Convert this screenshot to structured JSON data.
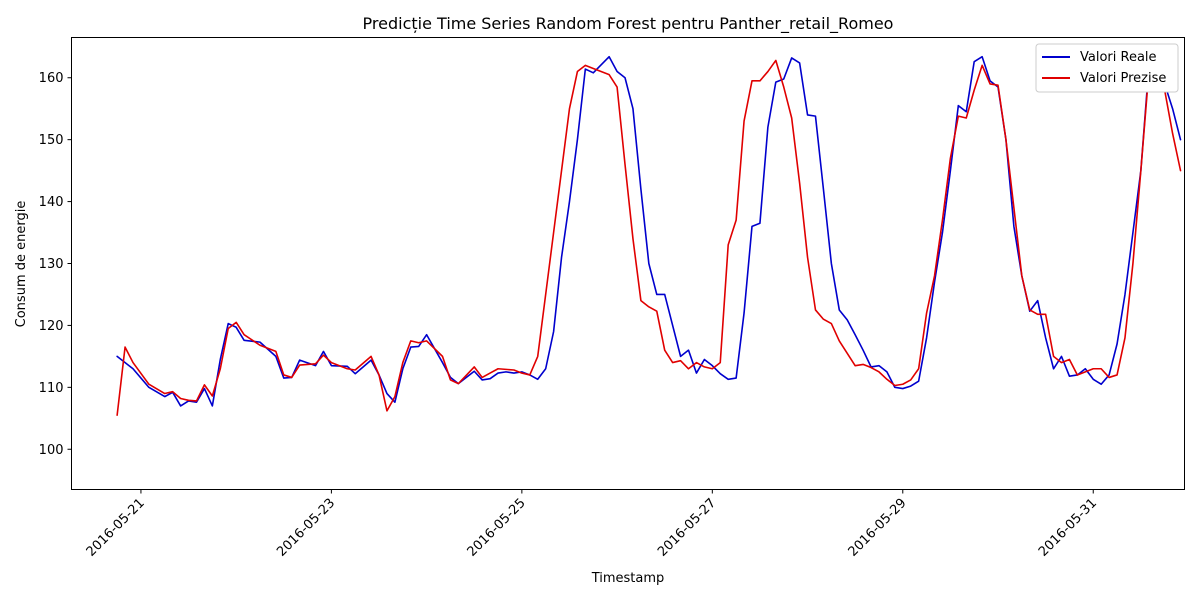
{
  "chart_data": {
    "type": "line",
    "title": "Predicție Time Series Random Forest pentru Panther_retail_Romeo",
    "xlabel": "Timestamp",
    "ylabel": "Consum de energie",
    "x_ticks": [
      "2016-05-21",
      "2016-05-23",
      "2016-05-25",
      "2016-05-27",
      "2016-05-29",
      "2016-05-31"
    ],
    "y_ticks": [
      100,
      110,
      120,
      130,
      140,
      150,
      160
    ],
    "ylim": [
      93.5,
      166.5
    ],
    "xlim": [
      "2016-05-20 06:30",
      "2016-05-31 23:00"
    ],
    "grid": false,
    "legend_position": "top-right",
    "series": [
      {
        "name": "Valori Reale",
        "color": "#0000cd",
        "points": [
          [
            "2016-05-20 18:00",
            115.0
          ],
          [
            "2016-05-20 22:00",
            113.0
          ],
          [
            "2016-05-21 02:00",
            110.0
          ],
          [
            "2016-05-21 06:00",
            108.5
          ],
          [
            "2016-05-21 08:00",
            109.2
          ],
          [
            "2016-05-21 10:00",
            107.0
          ],
          [
            "2016-05-21 12:00",
            107.8
          ],
          [
            "2016-05-21 14:00",
            107.6
          ],
          [
            "2016-05-21 16:00",
            109.8
          ],
          [
            "2016-05-21 18:00",
            107.0
          ],
          [
            "2016-05-21 20:00",
            114.5
          ],
          [
            "2016-05-21 22:00",
            120.3
          ],
          [
            "2016-05-22 00:00",
            119.7
          ],
          [
            "2016-05-22 02:00",
            117.6
          ],
          [
            "2016-05-22 06:00",
            117.3
          ],
          [
            "2016-05-22 10:00",
            115.0
          ],
          [
            "2016-05-22 12:00",
            111.5
          ],
          [
            "2016-05-22 14:00",
            111.6
          ],
          [
            "2016-05-22 16:00",
            114.4
          ],
          [
            "2016-05-22 20:00",
            113.5
          ],
          [
            "2016-05-22 22:00",
            115.8
          ],
          [
            "2016-05-23 00:00",
            113.5
          ],
          [
            "2016-05-23 04:00",
            113.4
          ],
          [
            "2016-05-23 06:00",
            112.2
          ],
          [
            "2016-05-23 10:00",
            114.4
          ],
          [
            "2016-05-23 12:00",
            112.0
          ],
          [
            "2016-05-23 14:00",
            109.0
          ],
          [
            "2016-05-23 16:00",
            107.6
          ],
          [
            "2016-05-23 18:00",
            113.0
          ],
          [
            "2016-05-23 20:00",
            116.5
          ],
          [
            "2016-05-23 22:00",
            116.6
          ],
          [
            "2016-05-24 00:00",
            118.5
          ],
          [
            "2016-05-24 04:00",
            114.0
          ],
          [
            "2016-05-24 06:00",
            111.6
          ],
          [
            "2016-05-24 08:00",
            110.6
          ],
          [
            "2016-05-24 12:00",
            112.6
          ],
          [
            "2016-05-24 14:00",
            111.2
          ],
          [
            "2016-05-24 16:00",
            111.4
          ],
          [
            "2016-05-24 18:00",
            112.3
          ],
          [
            "2016-05-24 20:00",
            112.5
          ],
          [
            "2016-05-24 22:00",
            112.3
          ],
          [
            "2016-05-25 00:00",
            112.5
          ],
          [
            "2016-05-25 02:00",
            112.0
          ],
          [
            "2016-05-25 04:00",
            111.3
          ],
          [
            "2016-05-25 06:00",
            113.0
          ],
          [
            "2016-05-25 08:00",
            119.0
          ],
          [
            "2016-05-25 10:00",
            131.0
          ],
          [
            "2016-05-25 12:00",
            140.0
          ],
          [
            "2016-05-25 14:00",
            150.0
          ],
          [
            "2016-05-25 16:00",
            161.4
          ],
          [
            "2016-05-25 18:00",
            160.8
          ],
          [
            "2016-05-25 22:00",
            163.4
          ],
          [
            "2016-05-26 00:00",
            161.0
          ],
          [
            "2016-05-26 02:00",
            160.0
          ],
          [
            "2016-05-26 04:00",
            155.0
          ],
          [
            "2016-05-26 06:00",
            142.0
          ],
          [
            "2016-05-26 08:00",
            130.0
          ],
          [
            "2016-05-26 10:00",
            125.0
          ],
          [
            "2016-05-26 12:00",
            125.0
          ],
          [
            "2016-05-26 14:00",
            120.0
          ],
          [
            "2016-05-26 16:00",
            115.0
          ],
          [
            "2016-05-26 18:00",
            116.0
          ],
          [
            "2016-05-26 20:00",
            112.3
          ],
          [
            "2016-05-26 22:00",
            114.5
          ],
          [
            "2016-05-27 00:00",
            113.5
          ],
          [
            "2016-05-27 02:00",
            112.2
          ],
          [
            "2016-05-27 04:00",
            111.3
          ],
          [
            "2016-05-27 06:00",
            111.5
          ],
          [
            "2016-05-27 08:00",
            122.0
          ],
          [
            "2016-05-27 10:00",
            136.0
          ],
          [
            "2016-05-27 12:00",
            136.5
          ],
          [
            "2016-05-27 14:00",
            152.0
          ],
          [
            "2016-05-27 16:00",
            159.3
          ],
          [
            "2016-05-27 18:00",
            159.8
          ],
          [
            "2016-05-27 20:00",
            163.2
          ],
          [
            "2016-05-27 22:00",
            162.4
          ],
          [
            "2016-05-28 00:00",
            154.0
          ],
          [
            "2016-05-28 02:00",
            153.8
          ],
          [
            "2016-05-28 04:00",
            142.0
          ],
          [
            "2016-05-28 06:00",
            130.0
          ],
          [
            "2016-05-28 08:00",
            122.5
          ],
          [
            "2016-05-28 10:00",
            120.9
          ],
          [
            "2016-05-28 12:00",
            118.5
          ],
          [
            "2016-05-28 14:00",
            116.0
          ],
          [
            "2016-05-28 16:00",
            113.3
          ],
          [
            "2016-05-28 18:00",
            113.5
          ],
          [
            "2016-05-28 20:00",
            112.5
          ],
          [
            "2016-05-28 22:00",
            110.0
          ],
          [
            "2016-05-29 00:00",
            109.8
          ],
          [
            "2016-05-29 02:00",
            110.2
          ],
          [
            "2016-05-29 04:00",
            111.0
          ],
          [
            "2016-05-29 06:00",
            118.0
          ],
          [
            "2016-05-29 08:00",
            127.0
          ],
          [
            "2016-05-29 10:00",
            135.0
          ],
          [
            "2016-05-29 12:00",
            145.0
          ],
          [
            "2016-05-29 14:00",
            155.5
          ],
          [
            "2016-05-29 16:00",
            154.5
          ],
          [
            "2016-05-29 18:00",
            162.6
          ],
          [
            "2016-05-29 20:00",
            163.4
          ],
          [
            "2016-05-29 22:00",
            159.5
          ],
          [
            "2016-05-30 00:00",
            158.5
          ],
          [
            "2016-05-30 02:00",
            150.0
          ],
          [
            "2016-05-30 04:00",
            136.0
          ],
          [
            "2016-05-30 06:00",
            128.0
          ],
          [
            "2016-05-30 08:00",
            122.3
          ],
          [
            "2016-05-30 10:00",
            124.0
          ],
          [
            "2016-05-30 12:00",
            118.0
          ],
          [
            "2016-05-30 14:00",
            113.0
          ],
          [
            "2016-05-30 16:00",
            115.0
          ],
          [
            "2016-05-30 18:00",
            111.8
          ],
          [
            "2016-05-30 20:00",
            112.0
          ],
          [
            "2016-05-30 22:00",
            113.0
          ],
          [
            "2016-05-31 00:00",
            111.3
          ],
          [
            "2016-05-31 02:00",
            110.5
          ],
          [
            "2016-05-31 04:00",
            112.0
          ],
          [
            "2016-05-31 06:00",
            117.0
          ],
          [
            "2016-05-31 08:00",
            125.0
          ],
          [
            "2016-05-31 10:00",
            135.0
          ],
          [
            "2016-05-31 12:00",
            145.0
          ],
          [
            "2016-05-31 14:00",
            161.7
          ],
          [
            "2016-05-31 16:00",
            158.5
          ],
          [
            "2016-05-31 18:00",
            159.0
          ],
          [
            "2016-05-31 20:00",
            155.0
          ],
          [
            "2016-05-31 22:00",
            150.0
          ]
        ]
      },
      {
        "name": "Valori Prezise",
        "color": "#e00000",
        "points": [
          [
            "2016-05-20 18:00",
            105.5
          ],
          [
            "2016-05-20 20:00",
            116.5
          ],
          [
            "2016-05-20 22:00",
            114.0
          ],
          [
            "2016-05-21 02:00",
            110.5
          ],
          [
            "2016-05-21 06:00",
            109.0
          ],
          [
            "2016-05-21 08:00",
            109.3
          ],
          [
            "2016-05-21 10:00",
            108.2
          ],
          [
            "2016-05-21 12:00",
            107.9
          ],
          [
            "2016-05-21 14:00",
            107.8
          ],
          [
            "2016-05-21 16:00",
            110.4
          ],
          [
            "2016-05-21 18:00",
            108.6
          ],
          [
            "2016-05-21 20:00",
            113.0
          ],
          [
            "2016-05-21 22:00",
            119.5
          ],
          [
            "2016-05-22 00:00",
            120.5
          ],
          [
            "2016-05-22 02:00",
            118.5
          ],
          [
            "2016-05-22 06:00",
            116.8
          ],
          [
            "2016-05-22 10:00",
            115.8
          ],
          [
            "2016-05-22 12:00",
            112.0
          ],
          [
            "2016-05-22 14:00",
            111.6
          ],
          [
            "2016-05-22 16:00",
            113.6
          ],
          [
            "2016-05-22 20:00",
            113.8
          ],
          [
            "2016-05-22 22:00",
            115.2
          ],
          [
            "2016-05-23 00:00",
            114.0
          ],
          [
            "2016-05-23 04:00",
            113.0
          ],
          [
            "2016-05-23 06:00",
            112.8
          ],
          [
            "2016-05-23 10:00",
            115.0
          ],
          [
            "2016-05-23 12:00",
            112.0
          ],
          [
            "2016-05-23 14:00",
            106.2
          ],
          [
            "2016-05-23 16:00",
            108.5
          ],
          [
            "2016-05-23 18:00",
            114.0
          ],
          [
            "2016-05-23 20:00",
            117.5
          ],
          [
            "2016-05-23 22:00",
            117.2
          ],
          [
            "2016-05-24 00:00",
            117.5
          ],
          [
            "2016-05-24 04:00",
            115.0
          ],
          [
            "2016-05-24 06:00",
            111.2
          ],
          [
            "2016-05-24 08:00",
            110.6
          ],
          [
            "2016-05-24 12:00",
            113.3
          ],
          [
            "2016-05-24 14:00",
            111.6
          ],
          [
            "2016-05-24 16:00",
            112.3
          ],
          [
            "2016-05-24 18:00",
            113.0
          ],
          [
            "2016-05-24 20:00",
            112.9
          ],
          [
            "2016-05-24 22:00",
            112.8
          ],
          [
            "2016-05-25 00:00",
            112.3
          ],
          [
            "2016-05-25 02:00",
            112.0
          ],
          [
            "2016-05-25 04:00",
            115.0
          ],
          [
            "2016-05-25 06:00",
            125.0
          ],
          [
            "2016-05-25 08:00",
            135.0
          ],
          [
            "2016-05-25 10:00",
            145.0
          ],
          [
            "2016-05-25 12:00",
            155.0
          ],
          [
            "2016-05-25 14:00",
            161.0
          ],
          [
            "2016-05-25 16:00",
            162.0
          ],
          [
            "2016-05-25 18:00",
            161.5
          ],
          [
            "2016-05-25 22:00",
            160.5
          ],
          [
            "2016-05-26 00:00",
            158.5
          ],
          [
            "2016-05-26 02:00",
            146.0
          ],
          [
            "2016-05-26 04:00",
            134.0
          ],
          [
            "2016-05-26 06:00",
            124.0
          ],
          [
            "2016-05-26 08:00",
            123.0
          ],
          [
            "2016-05-26 10:00",
            122.3
          ],
          [
            "2016-05-26 12:00",
            116.0
          ],
          [
            "2016-05-26 14:00",
            114.0
          ],
          [
            "2016-05-26 16:00",
            114.3
          ],
          [
            "2016-05-26 18:00",
            113.0
          ],
          [
            "2016-05-26 20:00",
            114.0
          ],
          [
            "2016-05-26 22:00",
            113.3
          ],
          [
            "2016-05-27 00:00",
            113.0
          ],
          [
            "2016-05-27 02:00",
            114.0
          ],
          [
            "2016-05-27 04:00",
            133.0
          ],
          [
            "2016-05-27 06:00",
            137.0
          ],
          [
            "2016-05-27 08:00",
            153.0
          ],
          [
            "2016-05-27 10:00",
            159.5
          ],
          [
            "2016-05-27 12:00",
            159.5
          ],
          [
            "2016-05-27 14:00",
            161.0
          ],
          [
            "2016-05-27 16:00",
            162.8
          ],
          [
            "2016-05-27 18:00",
            158.5
          ],
          [
            "2016-05-27 20:00",
            153.5
          ],
          [
            "2016-05-27 22:00",
            143.0
          ],
          [
            "2016-05-28 00:00",
            131.0
          ],
          [
            "2016-05-28 02:00",
            122.5
          ],
          [
            "2016-05-28 04:00",
            121.0
          ],
          [
            "2016-05-28 06:00",
            120.3
          ],
          [
            "2016-05-28 08:00",
            117.5
          ],
          [
            "2016-05-28 10:00",
            115.5
          ],
          [
            "2016-05-28 12:00",
            113.5
          ],
          [
            "2016-05-28 14:00",
            113.7
          ],
          [
            "2016-05-28 16:00",
            113.2
          ],
          [
            "2016-05-28 18:00",
            112.5
          ],
          [
            "2016-05-28 20:00",
            111.3
          ],
          [
            "2016-05-28 22:00",
            110.3
          ],
          [
            "2016-05-29 00:00",
            110.5
          ],
          [
            "2016-05-29 02:00",
            111.2
          ],
          [
            "2016-05-29 04:00",
            113.0
          ],
          [
            "2016-05-29 06:00",
            122.0
          ],
          [
            "2016-05-29 08:00",
            128.0
          ],
          [
            "2016-05-29 10:00",
            137.0
          ],
          [
            "2016-05-29 12:00",
            147.0
          ],
          [
            "2016-05-29 14:00",
            153.8
          ],
          [
            "2016-05-29 16:00",
            153.5
          ],
          [
            "2016-05-29 18:00",
            158.0
          ],
          [
            "2016-05-29 20:00",
            162.0
          ],
          [
            "2016-05-29 22:00",
            159.0
          ],
          [
            "2016-05-30 00:00",
            158.8
          ],
          [
            "2016-05-30 02:00",
            150.0
          ],
          [
            "2016-05-30 04:00",
            139.0
          ],
          [
            "2016-05-30 06:00",
            128.0
          ],
          [
            "2016-05-30 08:00",
            122.5
          ],
          [
            "2016-05-30 10:00",
            121.8
          ],
          [
            "2016-05-30 12:00",
            121.8
          ],
          [
            "2016-05-30 14:00",
            115.0
          ],
          [
            "2016-05-30 16:00",
            114.0
          ],
          [
            "2016-05-30 18:00",
            114.5
          ],
          [
            "2016-05-30 20:00",
            112.0
          ],
          [
            "2016-05-30 22:00",
            112.5
          ],
          [
            "2016-05-31 00:00",
            113.0
          ],
          [
            "2016-05-31 02:00",
            113.0
          ],
          [
            "2016-05-31 04:00",
            111.6
          ],
          [
            "2016-05-31 06:00",
            112.0
          ],
          [
            "2016-05-31 08:00",
            118.0
          ],
          [
            "2016-05-31 10:00",
            130.0
          ],
          [
            "2016-05-31 12:00",
            145.0
          ],
          [
            "2016-05-31 14:00",
            160.8
          ],
          [
            "2016-05-31 16:00",
            161.0
          ],
          [
            "2016-05-31 18:00",
            158.0
          ],
          [
            "2016-05-31 20:00",
            151.0
          ],
          [
            "2016-05-31 22:00",
            145.0
          ]
        ]
      }
    ]
  }
}
